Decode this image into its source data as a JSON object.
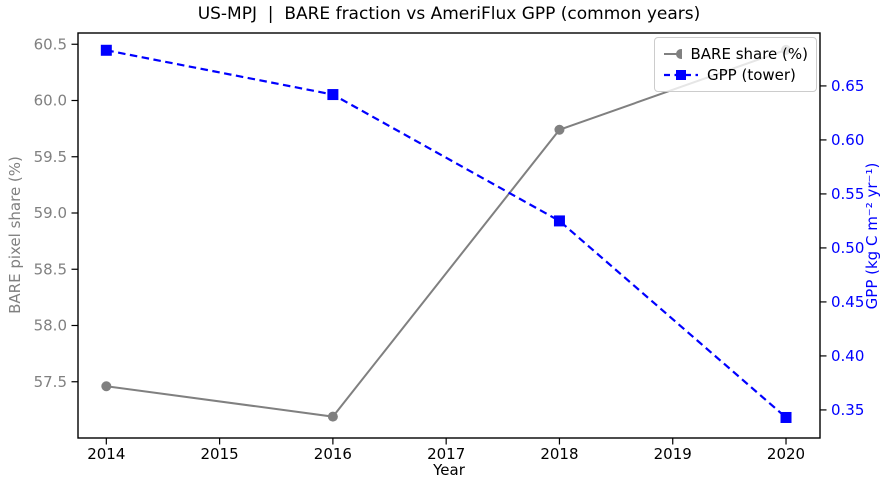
{
  "chart_data": {
    "type": "line",
    "title": "US-MPJ  |  BARE fraction vs AmeriFlux GPP (common years)",
    "xlabel": "Year",
    "ylabel_left": "BARE pixel share (%)",
    "ylabel_right": "GPP (kg C m⁻² yr⁻¹)",
    "x": [
      2014,
      2016,
      2018,
      2020
    ],
    "series": [
      {
        "name": "BARE share (%)",
        "axis": "left",
        "color": "#808080",
        "linestyle": "solid",
        "marker": "circle",
        "values": [
          57.46,
          57.19,
          59.74,
          60.45
        ]
      },
      {
        "name": "GPP (tower)",
        "axis": "right",
        "color": "#0000ff",
        "linestyle": "dashed",
        "marker": "square",
        "values": [
          0.683,
          0.642,
          0.525,
          0.343
        ]
      }
    ],
    "xlim": [
      2013.75,
      2020.3
    ],
    "ylim_left": [
      57.0,
      60.6
    ],
    "ylim_right": [
      0.324,
      0.699
    ],
    "x_ticks": [
      "2014",
      "2015",
      "2016",
      "2017",
      "2018",
      "2019",
      "2020"
    ],
    "y_ticks_left": [
      "57.5",
      "58.0",
      "58.5",
      "59.0",
      "59.5",
      "60.0",
      "60.5"
    ],
    "y_ticks_right": [
      "0.35",
      "0.40",
      "0.45",
      "0.50",
      "0.55",
      "0.60",
      "0.65"
    ],
    "grid": false,
    "legend_position": "upper right",
    "tick_label_colors": {
      "x": "#000000",
      "left": "#808080",
      "right": "#0000ff"
    }
  }
}
